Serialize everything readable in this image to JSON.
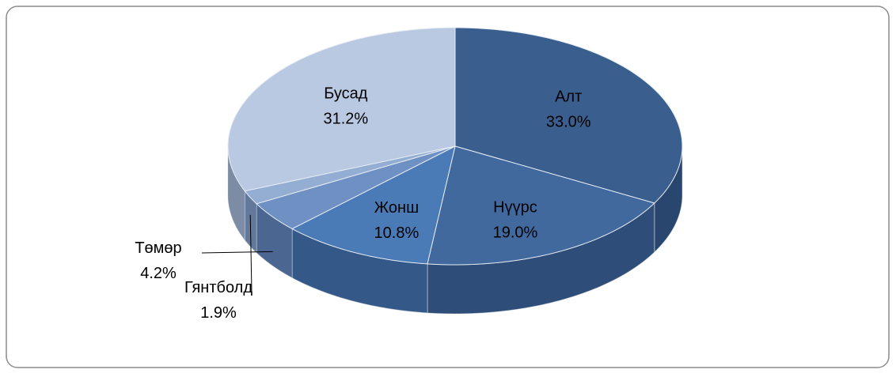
{
  "chart_data": {
    "type": "pie",
    "categories": [
      "Алт",
      "Нүүрс",
      "Жонш",
      "Төмөр",
      "Гянтболд",
      "Бусад"
    ],
    "values": [
      33.0,
      19.0,
      10.8,
      4.2,
      1.9,
      31.2
    ],
    "value_labels": [
      "33.0%",
      "19.0%",
      "10.8%",
      "4.2%",
      "1.9%",
      "31.2%"
    ],
    "colors": [
      "#3a5f8f",
      "#41699e",
      "#4a7bb7",
      "#6e90c2",
      "#93add3",
      "#b9c9e2"
    ]
  }
}
